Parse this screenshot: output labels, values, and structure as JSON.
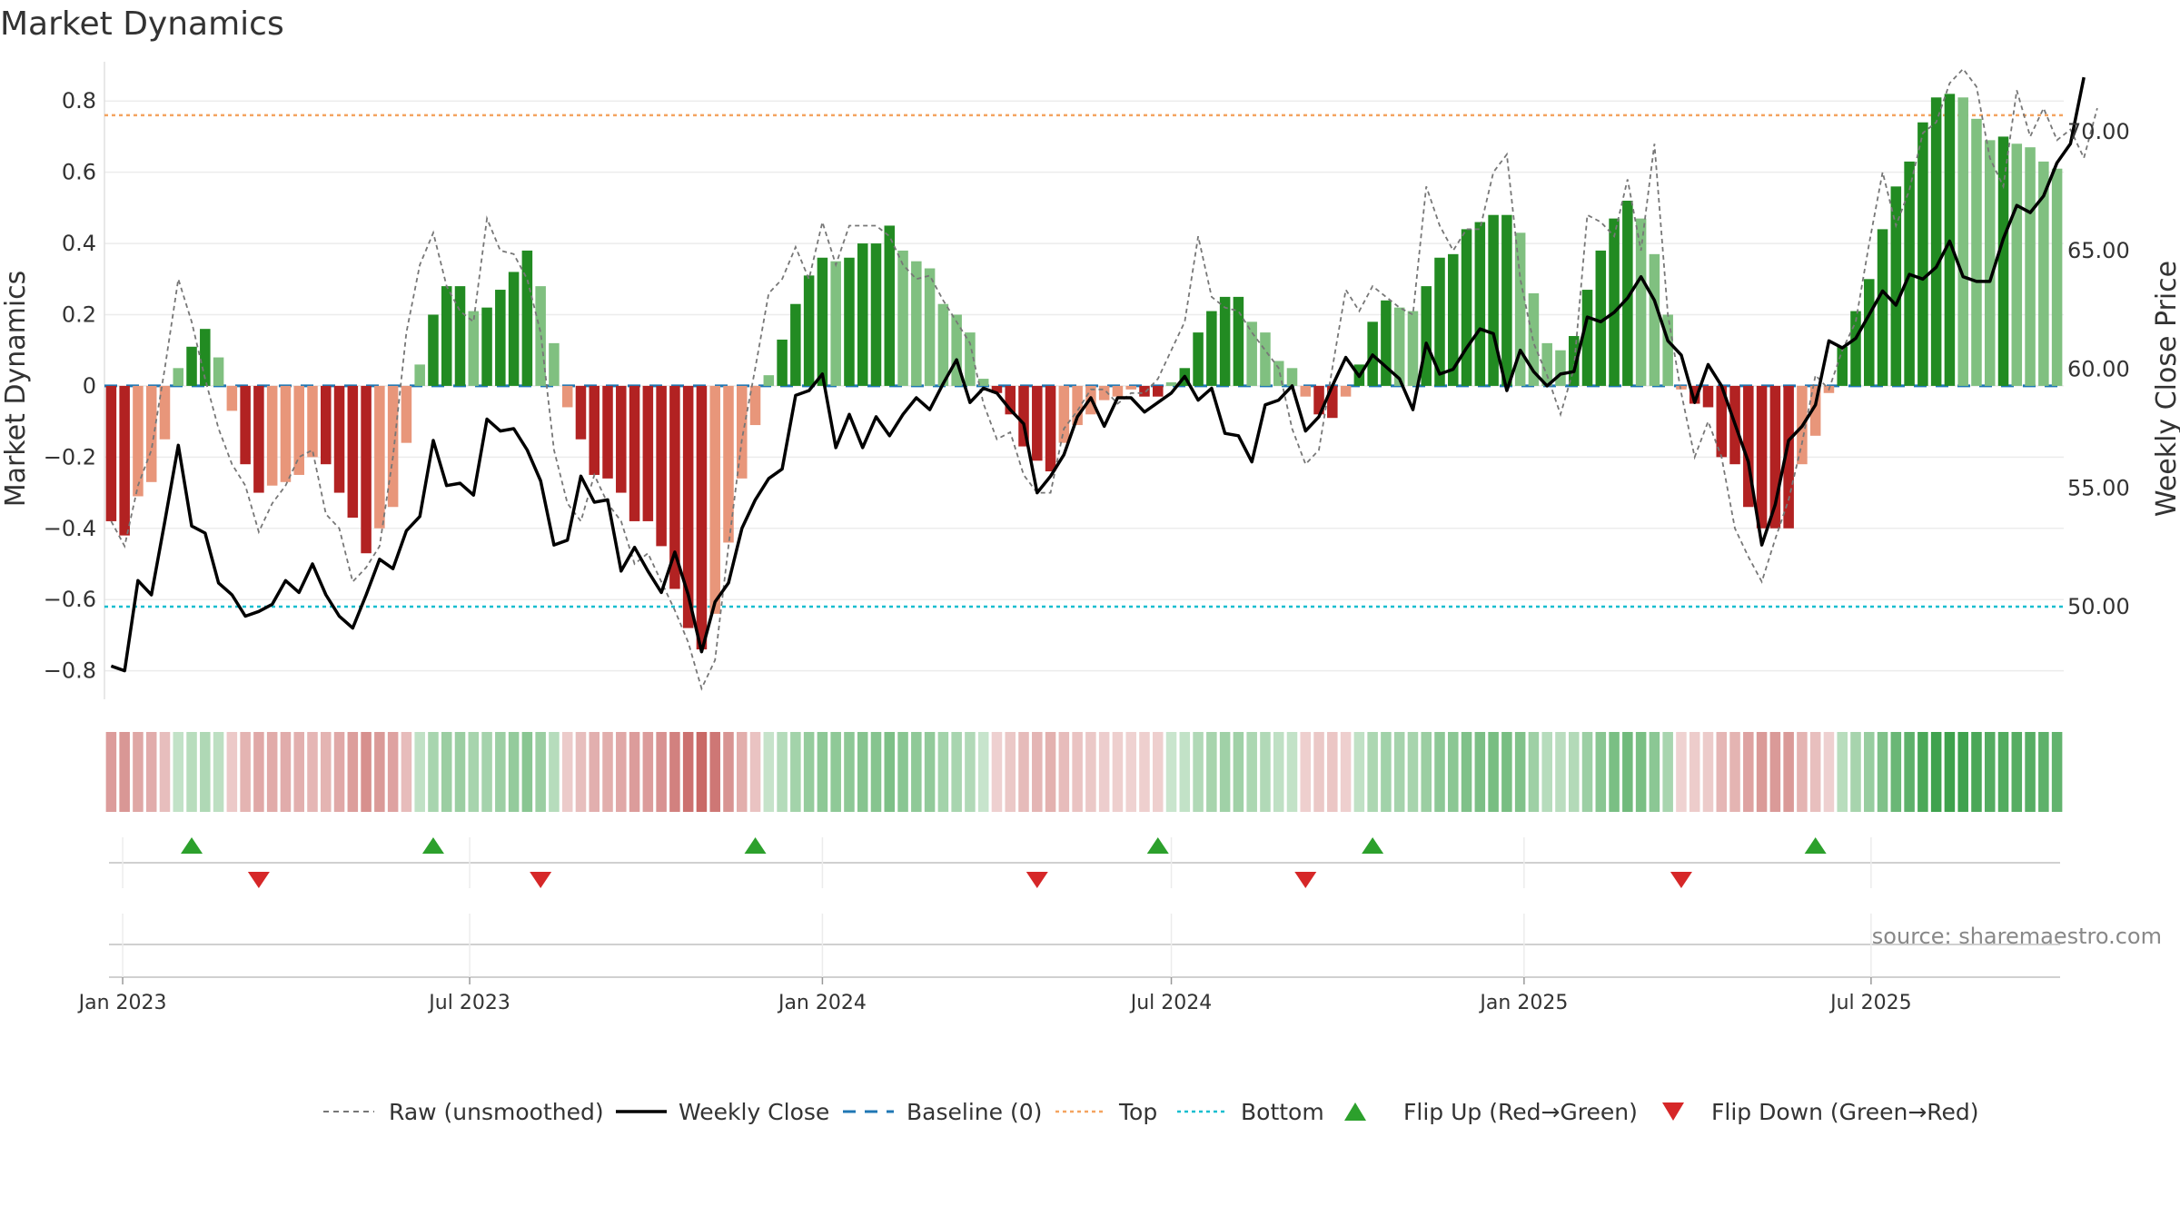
{
  "colors": {
    "strong_green": "#228b22",
    "light_green": "#80c080",
    "strong_red": "#b22222",
    "light_red": "#e8967a",
    "raw_line": "#777777",
    "close_line": "#000000",
    "baseline": "#1f77b4",
    "top": "#f4a460",
    "bottom": "#17becf",
    "flip_up": "#2ca02c",
    "flip_down": "#d62728"
  },
  "chart_data": {
    "type": "bar",
    "title": "Market Dynamics",
    "ylabel": "Market Dynamics",
    "y2label": "Weekly Close Price",
    "ylim": [
      -0.88,
      0.9
    ],
    "y2lim": [
      46.1,
      72.8
    ],
    "yticks": [
      "−0.8",
      "−0.6",
      "−0.4",
      "−0.2",
      "0",
      "0.2",
      "0.4",
      "0.6",
      "0.8"
    ],
    "ytick_values": [
      -0.8,
      -0.6,
      -0.4,
      -0.2,
      0,
      0.2,
      0.4,
      0.6,
      0.8
    ],
    "y2ticks": [
      "50.00",
      "55.00",
      "60.00",
      "65.00",
      "70.00"
    ],
    "y2tick_values": [
      50,
      55,
      60,
      65,
      70
    ],
    "x_start": "2022-12-26",
    "x_end": "2025-10-06",
    "xticks": [
      {
        "label": "Jan 2023",
        "date": "2023-01-01"
      },
      {
        "label": "Jul 2023",
        "date": "2023-07-01"
      },
      {
        "label": "Jan 2024",
        "date": "2024-01-01"
      },
      {
        "label": "Jul 2024",
        "date": "2024-07-01"
      },
      {
        "label": "Jan 2025",
        "date": "2025-01-01"
      },
      {
        "label": "Jul 2025",
        "date": "2025-07-01"
      }
    ],
    "top_level": 0.76,
    "bottom_level": -0.62,
    "smoothed": [
      -0.38,
      -0.42,
      -0.31,
      -0.27,
      -0.15,
      0.05,
      0.11,
      0.16,
      0.08,
      -0.07,
      -0.22,
      -0.3,
      -0.28,
      -0.27,
      -0.25,
      -0.2,
      -0.22,
      -0.3,
      -0.37,
      -0.47,
      -0.4,
      -0.34,
      -0.16,
      0.06,
      0.2,
      0.28,
      0.28,
      0.21,
      0.22,
      0.27,
      0.32,
      0.38,
      0.28,
      0.12,
      -0.06,
      -0.15,
      -0.25,
      -0.26,
      -0.3,
      -0.38,
      -0.38,
      -0.45,
      -0.57,
      -0.68,
      -0.74,
      -0.64,
      -0.44,
      -0.26,
      -0.11,
      0.03,
      0.13,
      0.23,
      0.31,
      0.36,
      0.35,
      0.36,
      0.4,
      0.4,
      0.45,
      0.38,
      0.35,
      0.33,
      0.23,
      0.2,
      0.15,
      0.02,
      -0.02,
      -0.08,
      -0.17,
      -0.21,
      -0.24,
      -0.16,
      -0.11,
      -0.08,
      -0.04,
      -0.03,
      -0.01,
      -0.03,
      -0.03,
      0.01,
      0.05,
      0.15,
      0.21,
      0.25,
      0.25,
      0.18,
      0.15,
      0.07,
      0.05,
      -0.03,
      -0.08,
      -0.09,
      -0.03,
      0.06,
      0.18,
      0.24,
      0.22,
      0.21,
      0.28,
      0.36,
      0.37,
      0.44,
      0.46,
      0.48,
      0.48,
      0.43,
      0.26,
      0.12,
      0.1,
      0.14,
      0.27,
      0.38,
      0.47,
      0.52,
      0.47,
      0.37,
      0.2,
      -0.01,
      -0.05,
      -0.06,
      -0.2,
      -0.22,
      -0.34,
      -0.4,
      -0.4,
      -0.4,
      -0.22,
      -0.14,
      -0.02,
      0.11,
      0.21,
      0.3,
      0.44,
      0.56,
      0.63,
      0.74,
      0.81,
      0.82,
      0.81,
      0.75,
      0.69,
      0.7,
      0.68,
      0.67,
      0.63,
      0.61
    ],
    "raw": [
      -0.38,
      -0.45,
      -0.28,
      -0.18,
      0.05,
      0.3,
      0.18,
      0.02,
      -0.12,
      -0.22,
      -0.28,
      -0.41,
      -0.33,
      -0.28,
      -0.2,
      -0.18,
      -0.36,
      -0.4,
      -0.55,
      -0.51,
      -0.45,
      -0.2,
      0.15,
      0.34,
      0.43,
      0.28,
      0.21,
      0.18,
      0.47,
      0.38,
      0.37,
      0.3,
      0.15,
      -0.18,
      -0.33,
      -0.38,
      -0.25,
      -0.33,
      -0.38,
      -0.5,
      -0.47,
      -0.55,
      -0.63,
      -0.72,
      -0.85,
      -0.77,
      -0.45,
      -0.15,
      0.05,
      0.26,
      0.3,
      0.39,
      0.3,
      0.46,
      0.34,
      0.45,
      0.45,
      0.45,
      0.42,
      0.34,
      0.3,
      0.31,
      0.24,
      0.18,
      0.12,
      -0.05,
      -0.15,
      -0.13,
      -0.25,
      -0.3,
      -0.3,
      -0.12,
      -0.07,
      -0.01,
      -0.01,
      -0.05,
      -0.02,
      -0.02,
      0.02,
      0.1,
      0.18,
      0.42,
      0.25,
      0.22,
      0.21,
      0.15,
      0.1,
      0.05,
      -0.12,
      -0.22,
      -0.18,
      0.05,
      0.27,
      0.21,
      0.28,
      0.25,
      0.22,
      0.2,
      0.56,
      0.45,
      0.38,
      0.44,
      0.44,
      0.6,
      0.65,
      0.3,
      0.12,
      0.03,
      -0.08,
      0.05,
      0.48,
      0.46,
      0.42,
      0.58,
      0.38,
      0.68,
      0.2,
      -0.02,
      -0.2,
      -0.1,
      -0.2,
      -0.4,
      -0.48,
      -0.55,
      -0.43,
      -0.32,
      -0.16,
      0.03,
      -0.01,
      0.1,
      0.18,
      0.4,
      0.6,
      0.45,
      0.55,
      0.71,
      0.74,
      0.85,
      0.89,
      0.84,
      0.64,
      0.56,
      0.83,
      0.7,
      0.78,
      0.69,
      0.72,
      0.64,
      0.78
    ],
    "close": [
      47.5,
      47.3,
      51.1,
      50.5,
      53.6,
      56.8,
      53.4,
      53.1,
      51.0,
      50.5,
      49.6,
      49.8,
      50.1,
      51.1,
      50.6,
      51.8,
      50.5,
      49.6,
      49.1,
      50.5,
      52.0,
      51.6,
      53.2,
      53.8,
      57.0,
      55.1,
      55.2,
      54.7,
      57.9,
      57.4,
      57.5,
      56.6,
      55.3,
      52.6,
      52.8,
      55.5,
      54.4,
      54.5,
      51.5,
      52.5,
      51.5,
      50.6,
      52.3,
      50.5,
      48.1,
      50.2,
      51.0,
      53.3,
      54.5,
      55.4,
      55.8,
      58.9,
      59.1,
      59.8,
      56.7,
      58.1,
      56.7,
      58.0,
      57.2,
      58.1,
      58.8,
      58.3,
      59.4,
      60.4,
      58.6,
      59.2,
      59.0,
      58.3,
      57.7,
      54.8,
      55.5,
      56.4,
      58.0,
      58.8,
      57.6,
      58.8,
      58.8,
      58.2,
      58.6,
      59.0,
      59.7,
      58.7,
      59.2,
      57.3,
      57.2,
      56.1,
      58.5,
      58.7,
      59.3,
      57.4,
      58.0,
      59.3,
      60.5,
      59.7,
      60.6,
      60.1,
      59.6,
      58.3,
      61.1,
      59.8,
      60.0,
      60.9,
      61.7,
      61.5,
      59.1,
      60.8,
      59.9,
      59.3,
      59.8,
      59.9,
      62.2,
      62.0,
      62.4,
      63.0,
      63.9,
      62.9,
      61.2,
      60.6,
      58.6,
      60.2,
      59.3,
      57.7,
      56.1,
      52.6,
      54.3,
      57.0,
      57.6,
      58.5,
      61.2,
      60.9,
      61.3,
      62.3,
      63.3,
      62.7,
      64.0,
      63.8,
      64.3,
      65.4,
      63.9,
      63.7,
      63.7,
      65.5,
      66.9,
      66.6,
      67.3,
      68.7,
      69.5,
      72.3
    ],
    "flips_up": [
      "2023-02-06",
      "2023-06-12",
      "2023-11-27",
      "2024-06-24",
      "2024-10-14",
      "2025-06-02"
    ],
    "flips_down": [
      "2023-03-13",
      "2023-08-07",
      "2024-04-22",
      "2024-09-09",
      "2025-03-24"
    ],
    "legend": {
      "raw": "Raw (unsmoothed)",
      "close": "Weekly Close",
      "baseline": "Baseline (0)",
      "top": "Top",
      "bottom": "Bottom",
      "flip_up": "Flip Up (Red→Green)",
      "flip_down": "Flip Down (Green→Red)"
    },
    "source": "source: sharemaestro.com"
  }
}
